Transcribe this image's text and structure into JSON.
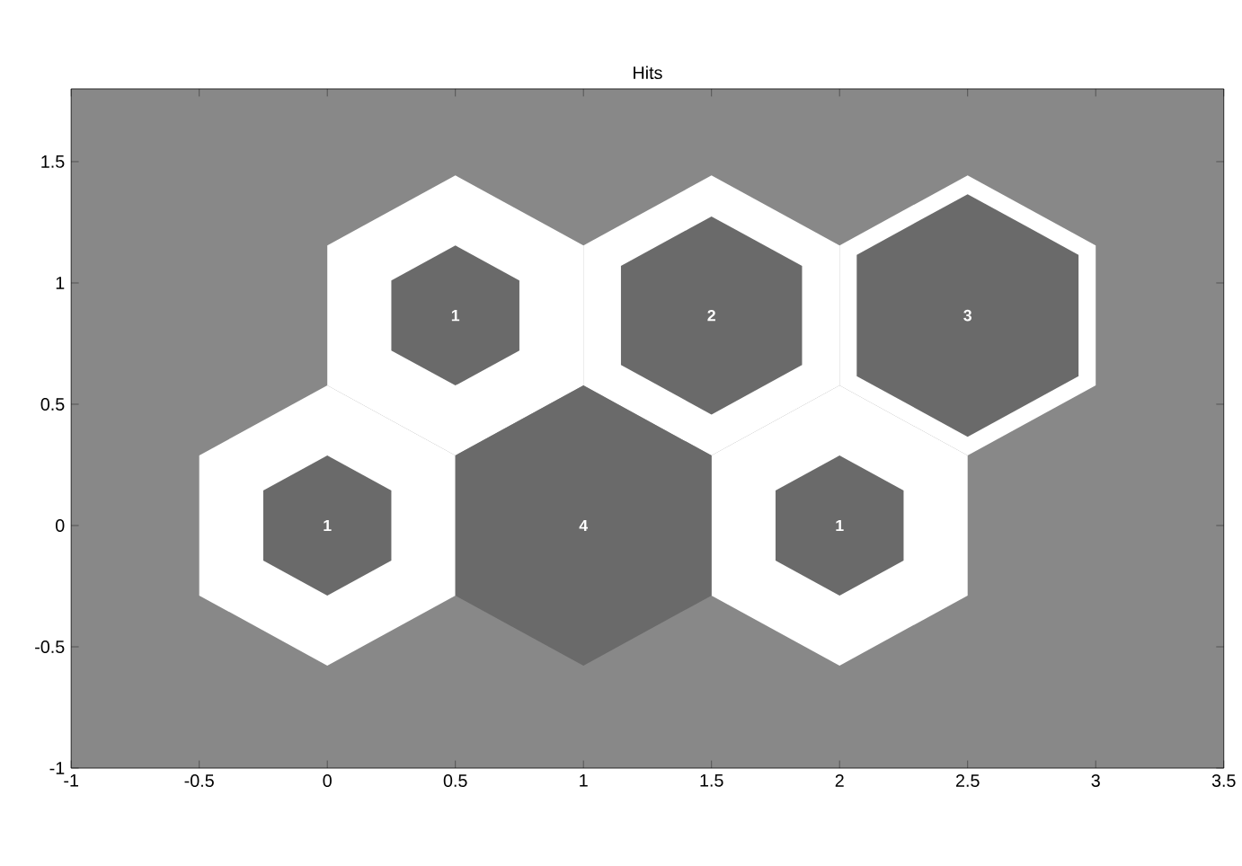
{
  "chart_data": {
    "type": "bubble",
    "title": "Hits",
    "series": [
      {
        "color": "#ffffff",
        "x": [
          0,
          1,
          2,
          0.5,
          1.5,
          2.5
        ],
        "values": [
          0,
          null,
          0,
          0.866,
          0.866,
          0.866
        ],
        "sizes": [
          1,
          null,
          1,
          1,
          1,
          1
        ]
      },
      {
        "color": "#6a6a6a",
        "x": [
          0,
          1,
          2,
          0.5,
          1.5,
          2.5
        ],
        "values": [
          0,
          0,
          0,
          0.866,
          0.866,
          0.866
        ],
        "sizes": [
          0.25,
          1,
          0.25,
          0.25,
          0.5,
          0.75
        ]
      }
    ],
    "annotations": [
      {
        "text": "1",
        "x": 0,
        "y": 0
      },
      {
        "text": "4",
        "x": 1,
        "y": 0
      },
      {
        "text": "1",
        "x": 2,
        "y": 0
      },
      {
        "text": "1",
        "x": 0.5,
        "y": 0.866
      },
      {
        "text": "2",
        "x": 1.5,
        "y": 0.866
      },
      {
        "text": "3",
        "x": 2.5,
        "y": 0.866
      }
    ],
    "xlim": [
      -1,
      3.5
    ],
    "ylim": [
      -1,
      1.8
    ],
    "xticks": [
      -1,
      -0.5,
      0,
      0.5,
      1,
      1.5,
      2,
      2.5,
      3,
      3.5
    ],
    "yticks": [
      -1,
      -0.5,
      0,
      0.5,
      1,
      1.5
    ]
  }
}
